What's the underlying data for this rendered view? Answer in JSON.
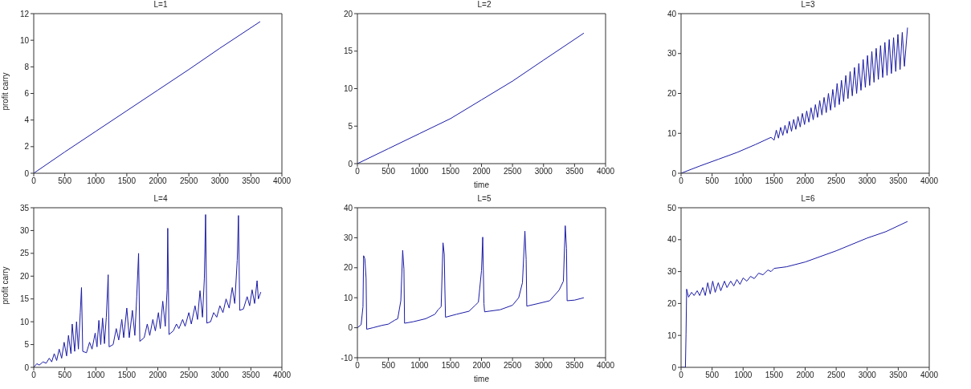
{
  "chart_data": [
    {
      "type": "line",
      "title": "L=1",
      "ylabel": "profit carry",
      "color": "#1a1aa6",
      "xlim": [
        0,
        4000
      ],
      "xticks": [
        0,
        500,
        1000,
        1500,
        2000,
        2500,
        3000,
        3500,
        4000
      ],
      "ylim": [
        0,
        12
      ],
      "yticks": [
        0,
        2,
        4,
        6,
        8,
        10,
        12
      ],
      "x": [
        0,
        500,
        1000,
        1500,
        2000,
        2500,
        3000,
        3650
      ],
      "values": [
        0,
        1.6,
        3.15,
        4.7,
        6.25,
        7.8,
        9.4,
        11.4
      ]
    },
    {
      "type": "line",
      "title": "L=2",
      "xlabel": "time",
      "color": "#1a1aa6",
      "xlim": [
        0,
        4000
      ],
      "xticks": [
        0,
        500,
        1000,
        1500,
        2000,
        2500,
        3000,
        3500,
        4000
      ],
      "ylim": [
        0,
        20
      ],
      "yticks": [
        0,
        5,
        10,
        15,
        20
      ],
      "x": [
        0,
        500,
        1000,
        1500,
        2000,
        2500,
        3000,
        3650
      ],
      "values": [
        0,
        2,
        4,
        6,
        8.5,
        11,
        13.8,
        17.4
      ]
    },
    {
      "type": "line",
      "title": "L=3",
      "color": "#1a1aa6",
      "xlim": [
        0,
        4000
      ],
      "xticks": [
        0,
        500,
        1000,
        1500,
        2000,
        2500,
        3000,
        3500,
        4000
      ],
      "ylim": [
        0,
        40
      ],
      "yticks": [
        0,
        10,
        20,
        30,
        40
      ],
      "x": [
        0,
        300,
        600,
        900,
        1200,
        1450,
        1500,
        1535,
        1570,
        1605,
        1640,
        1675,
        1710,
        1745,
        1780,
        1815,
        1850,
        1885,
        1920,
        1955,
        1990,
        2025,
        2060,
        2095,
        2130,
        2165,
        2200,
        2235,
        2270,
        2305,
        2340,
        2375,
        2410,
        2445,
        2480,
        2515,
        2550,
        2585,
        2620,
        2655,
        2690,
        2725,
        2760,
        2795,
        2830,
        2865,
        2900,
        2935,
        2970,
        3005,
        3040,
        3075,
        3110,
        3145,
        3180,
        3215,
        3250,
        3285,
        3320,
        3355,
        3390,
        3425,
        3460,
        3495,
        3530,
        3565,
        3600,
        3650
      ],
      "values": [
        0,
        1.8,
        3.5,
        5.2,
        7.2,
        9,
        8.3,
        10.8,
        8.8,
        11.5,
        9.5,
        12,
        10,
        13,
        10.5,
        13.5,
        11,
        14.2,
        11.6,
        15,
        12.2,
        15.6,
        12.8,
        16.4,
        13.4,
        17.2,
        14,
        18.2,
        14.6,
        19,
        15.2,
        20,
        15.8,
        21,
        16.5,
        22.5,
        17.2,
        23.3,
        18,
        24.5,
        18.7,
        25.5,
        19.4,
        26.5,
        20,
        27.5,
        20.8,
        28.5,
        21.5,
        29.5,
        22,
        30.5,
        22.8,
        31.3,
        23.5,
        32,
        24,
        32.8,
        24.5,
        33.5,
        25,
        34,
        25.5,
        34.8,
        26,
        35.3,
        26.8,
        36.5
      ]
    },
    {
      "type": "line",
      "title": "L=4",
      "ylabel": "profit carry",
      "color": "#1a1aa6",
      "xlim": [
        0,
        4000
      ],
      "xticks": [
        0,
        500,
        1000,
        1500,
        2000,
        2500,
        3000,
        3500,
        4000
      ],
      "ylim": [
        0,
        35
      ],
      "yticks": [
        0,
        5,
        10,
        15,
        20,
        25,
        30,
        35
      ],
      "x": [
        0,
        50,
        90,
        150,
        200,
        250,
        290,
        330,
        370,
        410,
        450,
        490,
        530,
        560,
        600,
        620,
        660,
        690,
        720,
        750,
        770,
        790,
        850,
        900,
        940,
        990,
        1020,
        1050,
        1080,
        1110,
        1140,
        1170,
        1200,
        1215,
        1280,
        1330,
        1370,
        1420,
        1450,
        1500,
        1540,
        1590,
        1630,
        1660,
        1690,
        1710,
        1780,
        1830,
        1870,
        1920,
        1960,
        2010,
        2040,
        2080,
        2120,
        2150,
        2160,
        2180,
        2250,
        2300,
        2340,
        2400,
        2440,
        2500,
        2540,
        2600,
        2640,
        2680,
        2720,
        2750,
        2770,
        2790,
        2850,
        2900,
        2950,
        3000,
        3050,
        3100,
        3150,
        3200,
        3240,
        3280,
        3300,
        3320,
        3380,
        3440,
        3480,
        3520,
        3560,
        3600,
        3620,
        3660
      ],
      "values": [
        0,
        0.8,
        0.5,
        1.2,
        0.9,
        2,
        1.2,
        3,
        1.5,
        4,
        2,
        5.5,
        2.5,
        7,
        3,
        9.5,
        3.5,
        10,
        4,
        12,
        17.5,
        3.5,
        3.2,
        5.5,
        4,
        7.5,
        4.5,
        10.3,
        5,
        10.8,
        5.2,
        11,
        20.3,
        4.5,
        5,
        8.5,
        6,
        10.5,
        6.5,
        13,
        6.5,
        12.5,
        7,
        15.5,
        25,
        5.7,
        6.5,
        9.5,
        7,
        10.5,
        8,
        12,
        8.5,
        14.5,
        9,
        17,
        30.5,
        7.2,
        8,
        9.5,
        8.5,
        10.5,
        9,
        12,
        9.5,
        13.5,
        10.5,
        16.8,
        11,
        19.5,
        33.5,
        9.7,
        10,
        12,
        11,
        13.5,
        12,
        15,
        13,
        17.5,
        14,
        23.5,
        33.3,
        12.5,
        12.8,
        15.5,
        13.5,
        17,
        14,
        19,
        15,
        16.5
      ]
    },
    {
      "type": "line",
      "title": "L=5",
      "xlabel": "time",
      "color": "#1a1aa6",
      "xlim": [
        0,
        4000
      ],
      "xticks": [
        0,
        500,
        1000,
        1500,
        2000,
        2500,
        3000,
        3500,
        4000
      ],
      "ylim": [
        -10,
        40
      ],
      "yticks": [
        -10,
        0,
        10,
        20,
        30,
        40
      ],
      "x": [
        0,
        60,
        90,
        100,
        120,
        140,
        150,
        250,
        400,
        500,
        600,
        650,
        700,
        730,
        750,
        760,
        900,
        1100,
        1250,
        1300,
        1350,
        1380,
        1400,
        1410,
        1420,
        1600,
        1800,
        1900,
        1950,
        2000,
        2020,
        2040,
        2050,
        2300,
        2500,
        2600,
        2660,
        2700,
        2720,
        2730,
        2900,
        3100,
        3250,
        3320,
        3350,
        3370,
        3380,
        3500,
        3650
      ],
      "values": [
        0,
        1,
        7,
        24,
        23,
        16.5,
        -0.5,
        0,
        0.8,
        1.2,
        2.5,
        3,
        9,
        25.8,
        19.5,
        1.5,
        2,
        3,
        4.5,
        6,
        7,
        28.3,
        24.5,
        13,
        3.5,
        4.5,
        5.5,
        7.5,
        8.5,
        19,
        30.2,
        8,
        5.3,
        6,
        7.5,
        10,
        15,
        32.2,
        22.8,
        7.2,
        8,
        9,
        12.5,
        15.5,
        34,
        26.5,
        9,
        9.2,
        10
      ]
    },
    {
      "type": "line",
      "title": "L=6",
      "color": "#1a1aa6",
      "xlim": [
        0,
        4000
      ],
      "xticks": [
        0,
        500,
        1000,
        1500,
        2000,
        2500,
        3000,
        3500,
        4000
      ],
      "ylim": [
        0,
        50
      ],
      "yticks": [
        0,
        10,
        20,
        30,
        40,
        50
      ],
      "x": [
        0,
        70,
        80,
        90,
        120,
        170,
        210,
        260,
        300,
        350,
        390,
        430,
        470,
        510,
        550,
        600,
        640,
        700,
        740,
        800,
        850,
        900,
        950,
        1000,
        1060,
        1120,
        1180,
        1250,
        1320,
        1400,
        1450,
        1500,
        1700,
        2000,
        2500,
        3000,
        3300,
        3650
      ],
      "values": [
        0,
        0,
        10.5,
        24.5,
        22,
        23.5,
        22.5,
        24,
        22.5,
        25,
        22.5,
        26.5,
        23,
        27,
        23.5,
        26.5,
        24,
        27,
        25,
        27,
        25.5,
        27.5,
        26,
        28,
        27,
        28.5,
        27.8,
        29.5,
        29,
        30.5,
        30,
        31,
        31.5,
        33,
        36.5,
        40.5,
        42.5,
        45.7
      ]
    }
  ]
}
